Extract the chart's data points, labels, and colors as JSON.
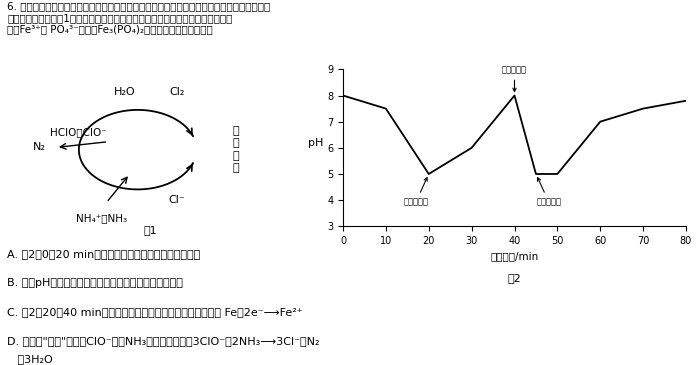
{
  "fig1_title": "图1",
  "fig2_title": "图2",
  "fig2_xlabel": "电解时间/min",
  "fig2_ylabel": "pH",
  "fig2_x": [
    0,
    10,
    20,
    30,
    40,
    45,
    50,
    60,
    70,
    80
  ],
  "fig2_y": [
    8.0,
    7.5,
    5.0,
    6.0,
    8.0,
    5.0,
    5.0,
    7.0,
    7.5,
    7.8
  ],
  "fig2_xlim": [
    0,
    80
  ],
  "fig2_ylim": [
    3,
    9
  ],
  "fig2_xticks": [
    0,
    10,
    20,
    30,
    40,
    50,
    60,
    70,
    80
  ],
  "fig2_yticks": [
    3,
    4,
    5,
    6,
    7,
    8,
    9
  ],
  "ann1_text": "翻转正负极",
  "ann2_text": "翻转正负极",
  "ann3_text": "翻转正负极",
  "header_line1": "6. 生活污水中的氮元素和磷元素主要以铵盐和磷酸盐的形式存在，可用电解法（铁、石墨作电",
  "header_line2": "极）去除，原理如图1所示原理可进行除氮，翻转电极正负极可进行除磷，原理是",
  "header_line3": "利用Fe³⁺使 PO₄³⁻转化为Fe₃(PO₄)₂沉淀。下列说法正确的是",
  "option_A": "A. 图2中0～20 min内去除的是氮元素，此时石墨作阴极",
  "option_B": "B. 溶液pH越小，有效氯浓度越大，氮元素的去除率越高",
  "option_C": "C. 图2中20～40 min内去除的是磷元素，阳极的电极反应式为 Fe－2e⁻⟶Fe²⁺",
  "option_D1": "D. 电解法\"除氮\"过程中ClO⁻氧化NH₃的离子方程式为3ClO⁻＋2NH₃⟶3Cl⁻＋N₂",
  "option_D2": "   ＋3H₂O"
}
